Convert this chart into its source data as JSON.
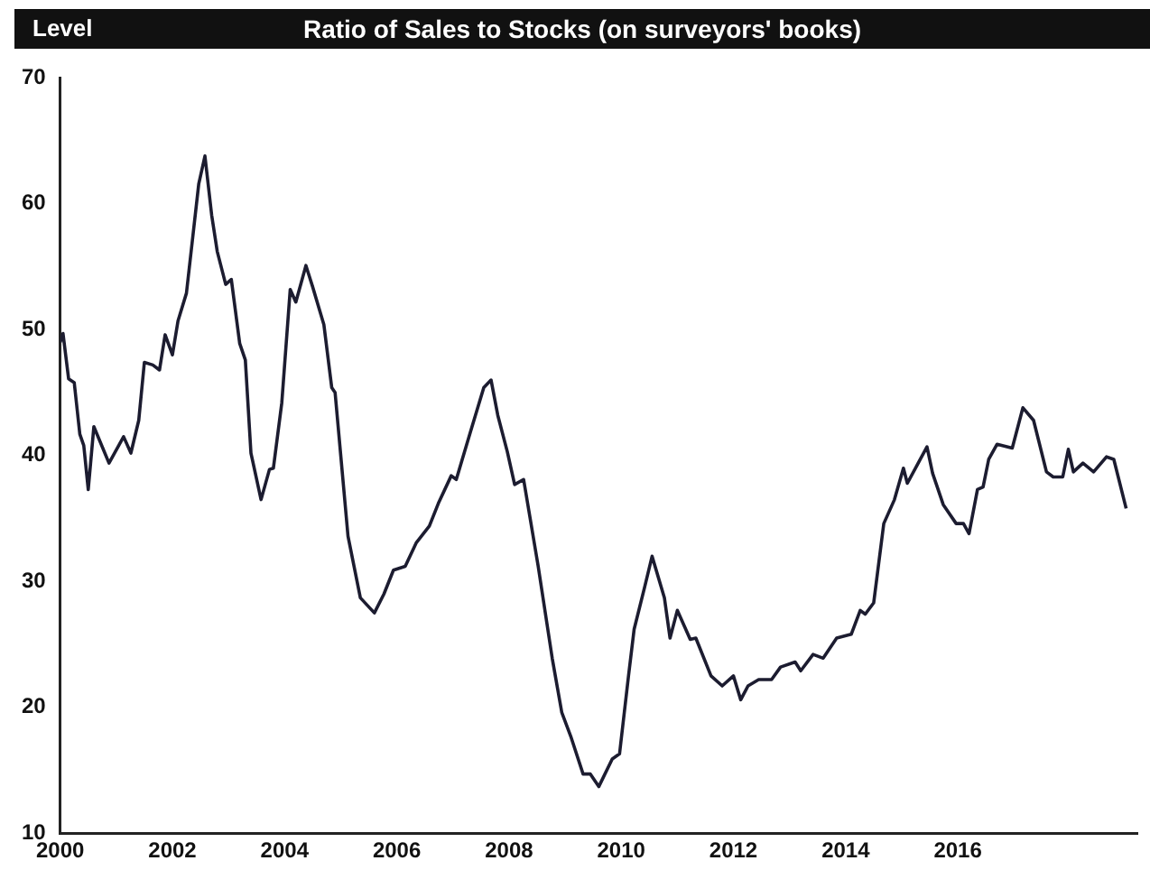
{
  "chart_data": {
    "type": "line",
    "title": "Ratio of Sales to Stocks (on surveyors' books)",
    "ylabel": "Level",
    "x": [
      2000.0,
      2000.05,
      2000.15,
      2000.25,
      2000.35,
      2000.42,
      2000.5,
      2000.6,
      2000.87,
      2001.13,
      2001.26,
      2001.4,
      2001.5,
      2001.65,
      2001.77,
      2001.87,
      2002.0,
      2002.1,
      2002.25,
      2002.47,
      2002.58,
      2002.7,
      2002.8,
      2002.95,
      2003.05,
      2003.2,
      2003.3,
      2003.4,
      2003.58,
      2003.73,
      2003.8,
      2003.95,
      2004.1,
      2004.2,
      2004.38,
      2004.5,
      2004.7,
      2004.84,
      2004.9,
      2005.13,
      2005.35,
      2005.6,
      2005.77,
      2005.94,
      2006.15,
      2006.35,
      2006.58,
      2006.74,
      2006.97,
      2007.06,
      2007.32,
      2007.55,
      2007.68,
      2007.8,
      2007.97,
      2008.1,
      2008.26,
      2008.52,
      2008.77,
      2008.94,
      2009.1,
      2009.32,
      2009.45,
      2009.6,
      2009.84,
      2009.97,
      2010.13,
      2010.23,
      2010.42,
      2010.55,
      2010.77,
      2010.87,
      2011.0,
      2011.23,
      2011.33,
      2011.6,
      2011.8,
      2012.0,
      2012.13,
      2012.26,
      2012.45,
      2012.68,
      2012.84,
      2013.1,
      2013.2,
      2013.42,
      2013.6,
      2013.84,
      2014.1,
      2014.26,
      2014.35,
      2014.5,
      2014.68,
      2014.87,
      2015.03,
      2015.1,
      2015.45,
      2015.55,
      2015.74,
      2015.97,
      2016.1,
      2016.2,
      2016.35,
      2016.45,
      2016.55,
      2016.7,
      2016.97,
      2017.16,
      2017.35,
      2017.58,
      2017.7,
      2017.87,
      2017.97,
      2018.06,
      2018.23,
      2018.42,
      2018.65,
      2018.78,
      2019.0
    ],
    "series": [
      {
        "color": "#1c1c30",
        "values": [
          49.0,
          49.7,
          46.1,
          45.8,
          41.7,
          40.8,
          37.3,
          42.3,
          39.4,
          41.5,
          40.2,
          42.8,
          47.4,
          47.2,
          46.8,
          49.6,
          48.0,
          50.7,
          52.9,
          61.6,
          63.8,
          59.1,
          56.2,
          53.6,
          54.0,
          48.9,
          47.6,
          40.2,
          36.5,
          38.9,
          39.0,
          44.2,
          53.2,
          52.2,
          55.1,
          53.4,
          50.4,
          45.4,
          45.0,
          33.6,
          28.7,
          27.5,
          29.0,
          30.9,
          31.2,
          33.1,
          34.4,
          36.2,
          38.4,
          38.1,
          42.0,
          45.4,
          46.0,
          43.2,
          40.3,
          37.7,
          38.1,
          31.2,
          23.9,
          19.6,
          17.7,
          14.7,
          14.7,
          13.7,
          15.9,
          16.3,
          22.5,
          26.2,
          29.6,
          32.0,
          28.7,
          25.5,
          27.7,
          25.4,
          25.5,
          22.5,
          21.7,
          22.5,
          20.6,
          21.7,
          22.2,
          22.2,
          23.2,
          23.6,
          22.9,
          24.2,
          23.9,
          25.5,
          25.8,
          27.7,
          27.4,
          28.3,
          34.6,
          36.5,
          39.0,
          37.8,
          40.7,
          38.6,
          36.1,
          34.6,
          34.6,
          33.8,
          37.3,
          37.5,
          39.7,
          40.9,
          40.6,
          43.8,
          42.8,
          38.7,
          38.3,
          38.3,
          40.5,
          38.7,
          39.4,
          38.7,
          39.9,
          39.7,
          35.8
        ]
      }
    ],
    "xlim": [
      2000,
      2019.2
    ],
    "xticks": [
      2000,
      2002,
      2004,
      2006,
      2008,
      2010,
      2012,
      2014,
      2016
    ],
    "ylim": [
      10,
      70
    ],
    "yticks": [
      10,
      20,
      30,
      40,
      50,
      60,
      70
    ],
    "grid": false,
    "legend": false,
    "marker": "none",
    "line_style": "solid"
  }
}
